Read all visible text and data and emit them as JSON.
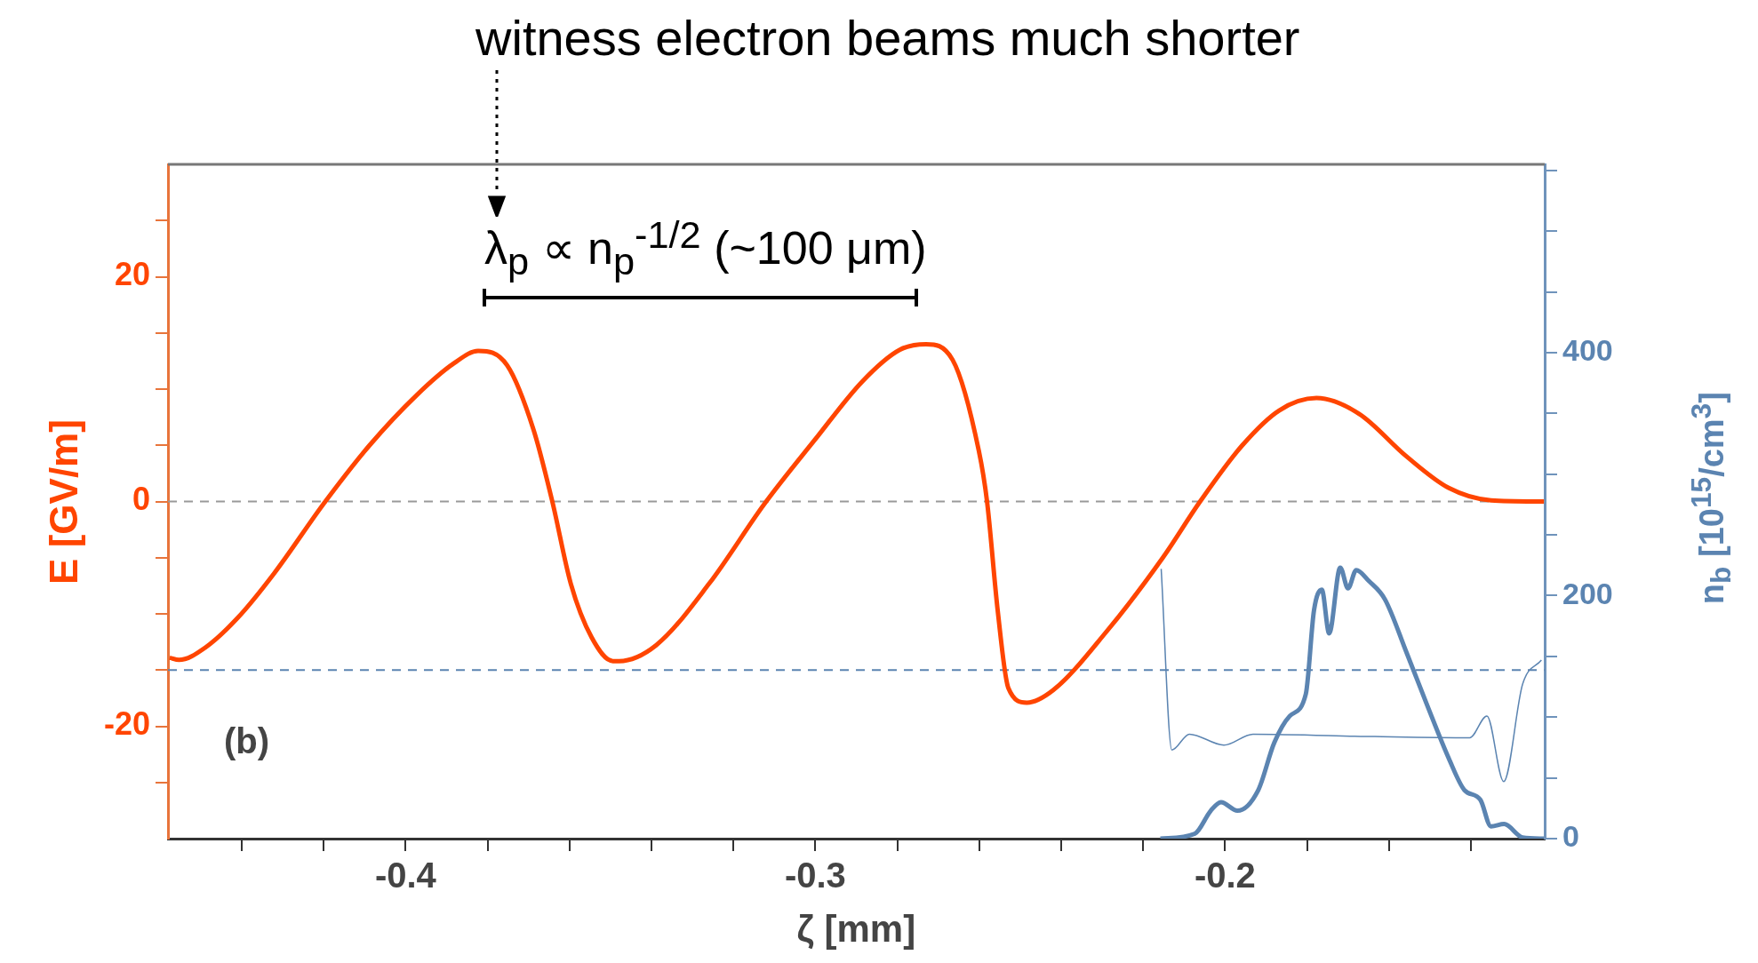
{
  "chart_data": {
    "type": "line",
    "xlabel": "ζ [mm]",
    "ylabel": "E [GV/m]",
    "y2label": "n$_{b}$ [10$^{15}$/cm$^{3}$]",
    "annotations": [
      "witness electron beams much shorter",
      "λ$_{p}$ ∝ n$_{p}$$^{-1/2}$ (~100 μm)",
      "(b)"
    ],
    "xlim": [
      -0.458,
      -0.122
    ],
    "xticks": [
      {
        "value": -0.44,
        "label": null
      },
      {
        "value": -0.42,
        "label": null
      },
      {
        "value": -0.4,
        "label": "-0.4"
      },
      {
        "value": -0.38,
        "label": null
      },
      {
        "value": -0.36,
        "label": null
      },
      {
        "value": -0.34,
        "label": null
      },
      {
        "value": -0.32,
        "label": null
      },
      {
        "value": -0.3,
        "label": "-0.3"
      },
      {
        "value": -0.28,
        "label": null
      },
      {
        "value": -0.26,
        "label": null
      },
      {
        "value": -0.24,
        "label": null
      },
      {
        "value": -0.22,
        "label": null
      },
      {
        "value": -0.2,
        "label": "-0.2"
      },
      {
        "value": -0.18,
        "label": null
      },
      {
        "value": -0.16,
        "label": null
      },
      {
        "value": -0.14,
        "label": null
      }
    ],
    "ylim": [
      -30,
      30
    ],
    "yticks": [
      {
        "value": -25,
        "label": null
      },
      -20,
      {
        "value": -15,
        "label": null
      },
      {
        "value": -10,
        "label": null
      },
      {
        "value": -5,
        "label": null
      },
      0,
      {
        "value": 5,
        "label": null
      },
      {
        "value": 10,
        "label": null
      },
      {
        "value": 15,
        "label": null
      },
      20,
      {
        "value": 25,
        "label": null
      }
    ],
    "y2lim": [
      0,
      555
    ],
    "y2ticks": [
      0,
      {
        "value": 50,
        "label": null
      },
      {
        "value": 100,
        "label": null
      },
      {
        "value": 150,
        "label": null
      },
      200,
      {
        "value": 250,
        "label": null
      },
      {
        "value": 300,
        "label": null
      },
      {
        "value": 350,
        "label": null
      },
      400,
      {
        "value": 450,
        "label": null
      },
      {
        "value": 500,
        "label": null
      },
      {
        "value": 550,
        "label": null
      }
    ],
    "grid": false,
    "marker": "none",
    "line_style": "solid",
    "ref_lines": [
      {
        "axis": "y",
        "value": 0,
        "color": "#999999",
        "line_style": "dashed"
      },
      {
        "axis": "y",
        "value": -15,
        "color": "#5b84b1",
        "line_style": "dashed"
      }
    ],
    "series": [
      {
        "color": "#ff4500",
        "axis": "y",
        "x": [
          -0.4576,
          -0.4553,
          -0.4489,
          -0.4411,
          -0.4321,
          -0.4198,
          -0.4088,
          -0.3972,
          -0.3882,
          -0.3823,
          -0.3752,
          -0.3688,
          -0.3642,
          -0.3597,
          -0.3546,
          -0.3494,
          -0.3479,
          -0.3389,
          -0.3259,
          -0.3124,
          -0.3001,
          -0.2885,
          -0.2794,
          -0.273,
          -0.2665,
          -0.2601,
          -0.2581,
          -0.2555,
          -0.2529,
          -0.2484,
          -0.242,
          -0.229,
          -0.2152,
          -0.2061,
          -0.1958,
          -0.1868,
          -0.1777,
          -0.1673,
          -0.1557,
          -0.1454,
          -0.1351,
          -0.1222
        ],
        "values": [
          -13.9,
          -14.1,
          -13.0,
          -10.4,
          -6.4,
          -0.1,
          5.0,
          9.5,
          12.3,
          13.4,
          12.1,
          6.4,
          0,
          -7.3,
          -12.1,
          -14.2,
          -14.2,
          -12.8,
          -7.3,
          -0.2,
          5.5,
          10.7,
          13.5,
          14.0,
          12.6,
          4.5,
          0,
          -9.7,
          -16.6,
          -17.9,
          -16.8,
          -11.6,
          -5.0,
          0,
          5.0,
          8.1,
          9.2,
          7.8,
          4.0,
          1.2,
          0.1,
          0
        ]
      },
      {
        "color": "#5b84b1",
        "axis": "y2",
        "x": [
          -0.2158,
          -0.2074,
          -0.2035,
          -0.201,
          -0.197,
          -0.1919,
          -0.188,
          -0.1842,
          -0.1803,
          -0.1783,
          -0.1764,
          -0.1746,
          -0.1719,
          -0.17,
          -0.168,
          -0.1649,
          -0.161,
          -0.1557,
          -0.1507,
          -0.1454,
          -0.1416,
          -0.1377,
          -0.1351,
          -0.1319,
          -0.1274,
          -0.1222
        ],
        "values": [
          0,
          4,
          23,
          30,
          23,
          40,
          79,
          101,
          119,
          188,
          205,
          169,
          223,
          206,
          221,
          212,
          197,
          153,
          110,
          66,
          40,
          32,
          10,
          12,
          1,
          0
        ]
      },
      {
        "color": "#5b84b1",
        "axis": "y2",
        "x": [
          -0.2156,
          -0.213,
          -0.2087,
          -0.2003,
          -0.1932,
          -0.1635,
          -0.1403,
          -0.1361,
          -0.132,
          -0.1274,
          -0.1228
        ],
        "values": [
          222,
          73,
          86,
          77,
          86,
          84,
          83,
          101,
          47,
          127,
          147
        ]
      }
    ]
  }
}
